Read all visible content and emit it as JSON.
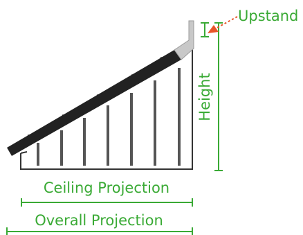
{
  "diagram": {
    "labels": {
      "upstand": "Upstand",
      "height": "Height",
      "ceiling_projection": "Ceiling Projection",
      "overall_projection": "Overall Projection"
    },
    "colors": {
      "dimension": "#3aaa35",
      "arrow": "#e8552a",
      "roof": "#222222",
      "upstand_flashing": "#c8c8c8",
      "outline": "#333333",
      "rafters": "#555555"
    }
  }
}
